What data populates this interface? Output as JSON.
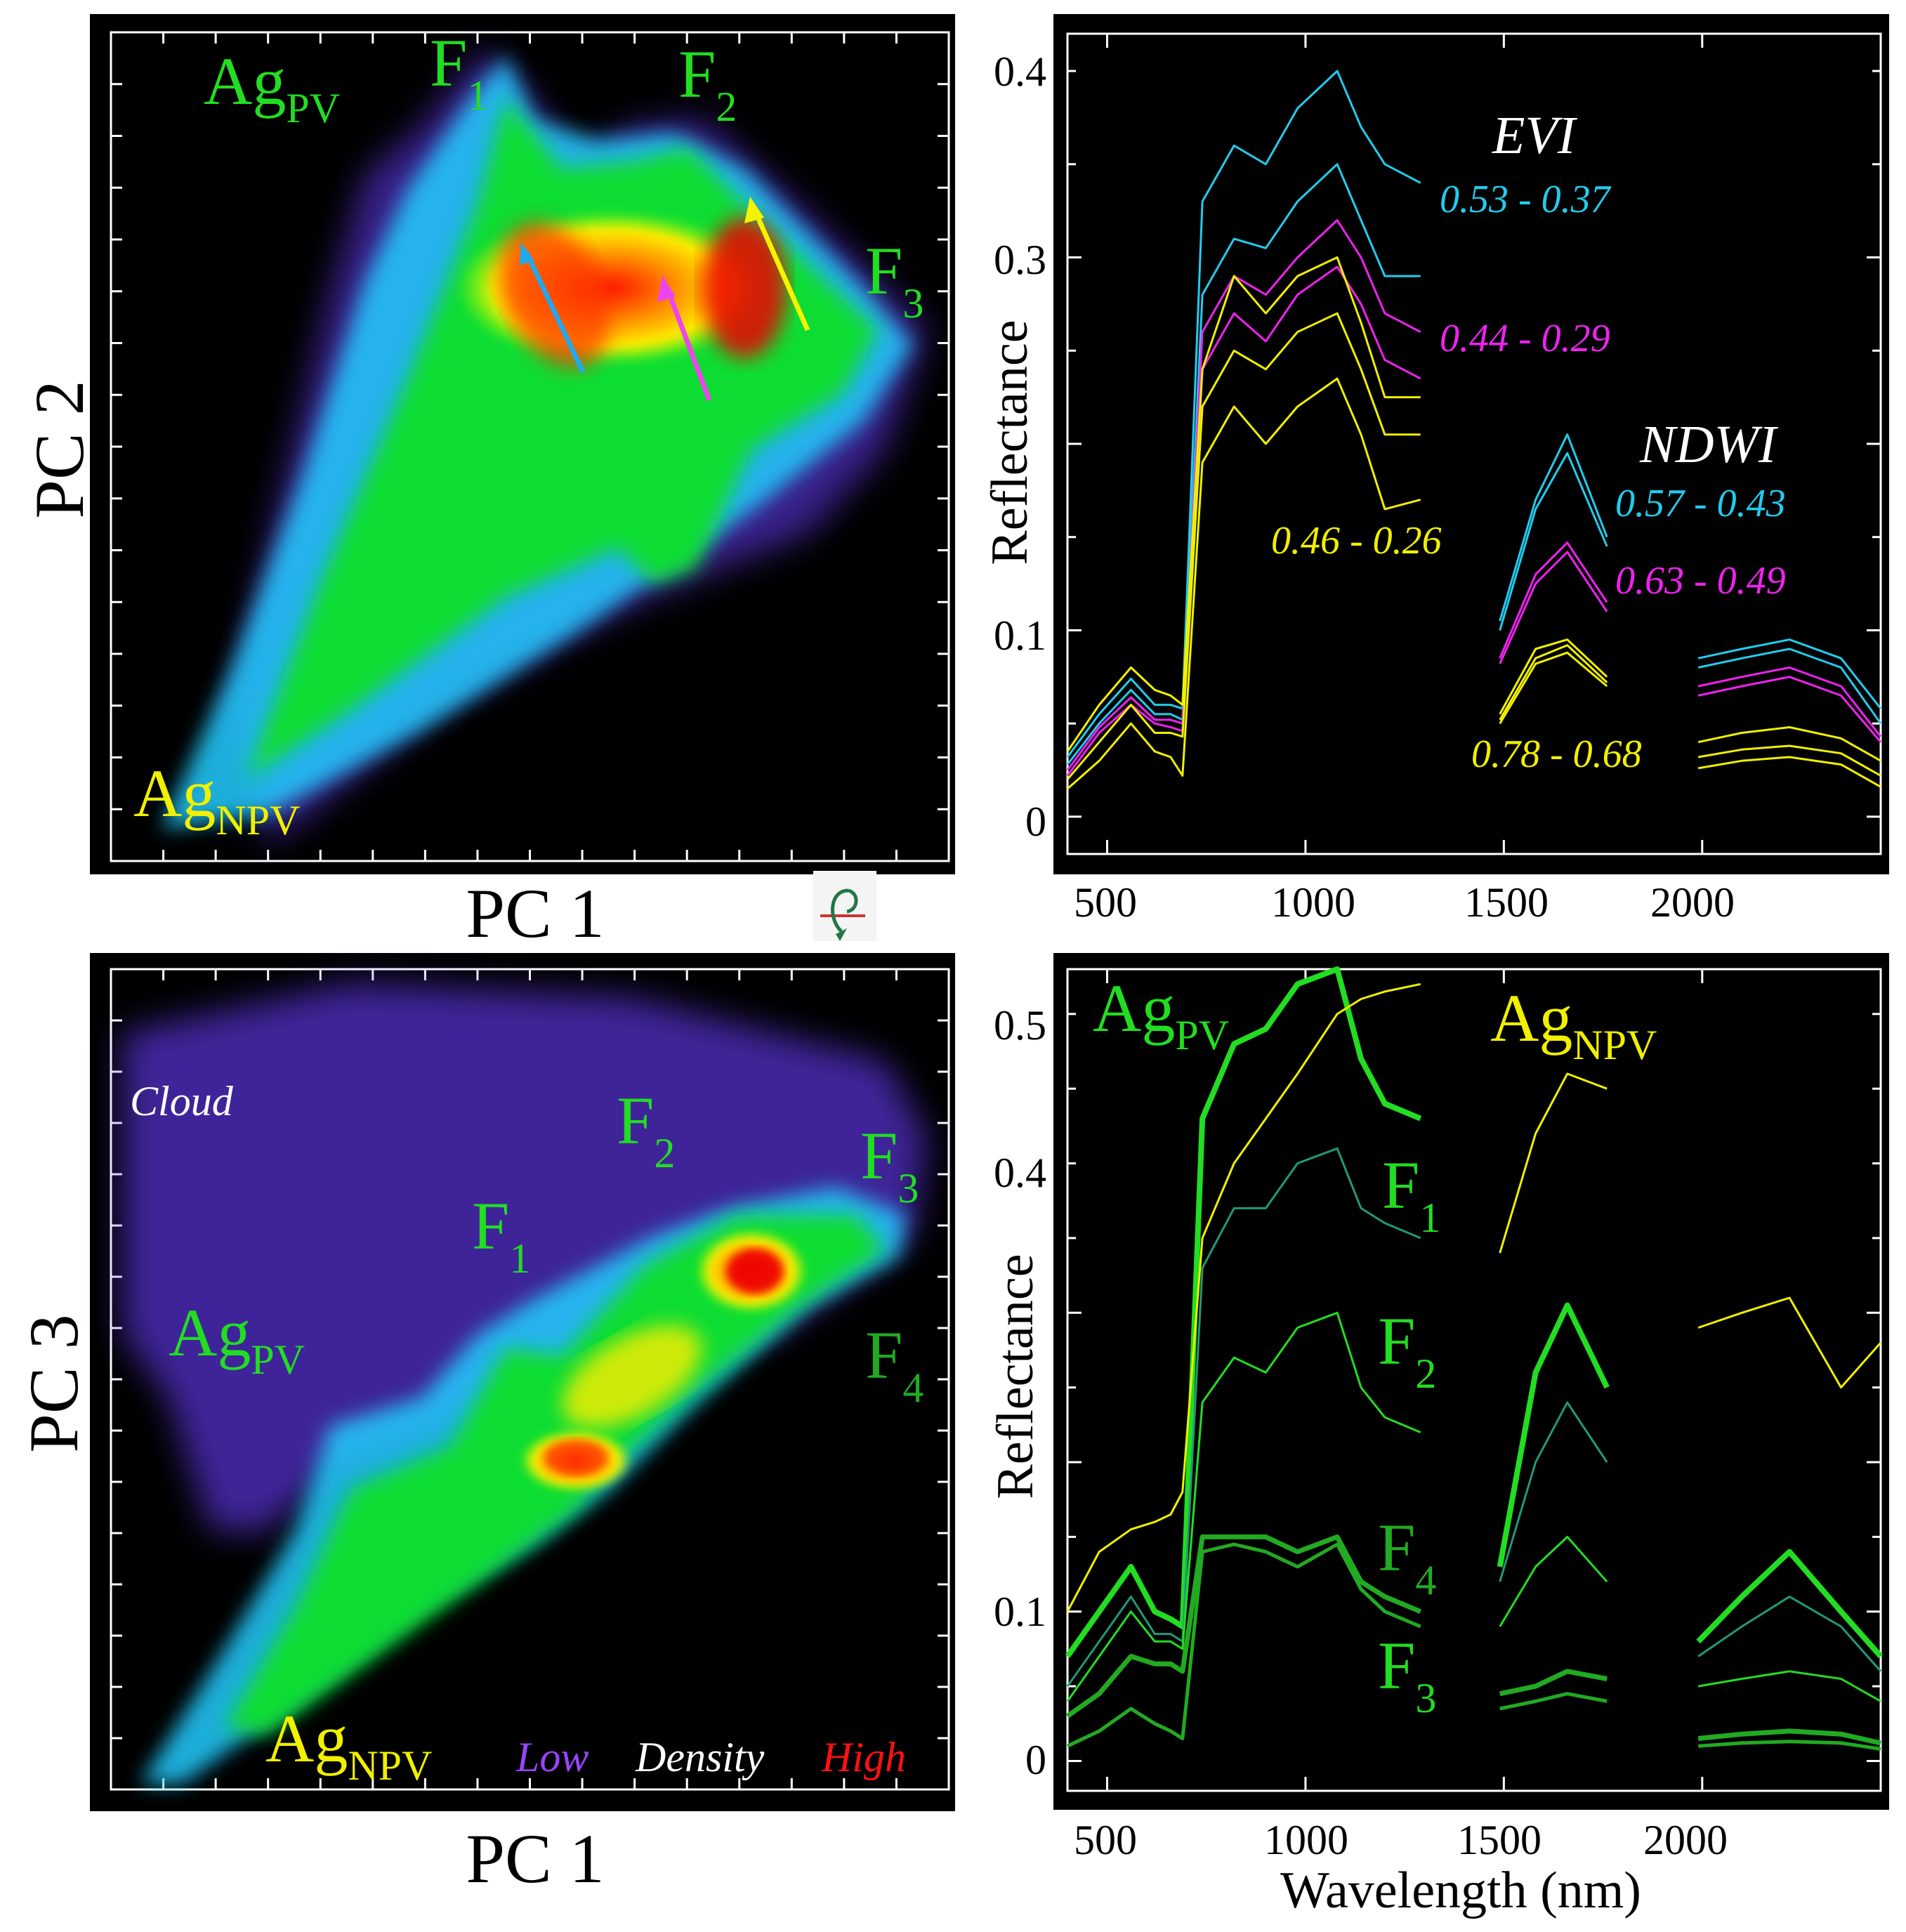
{
  "colors": {
    "green": "#22dd22",
    "yellow": "#f0f000",
    "cyan": "#22ccee",
    "magenta": "#ee22ee",
    "white": "#ffffff",
    "low": "#9944ff",
    "high": "#ff1111",
    "darkgreen": "#22aa22",
    "teal": "#229977"
  },
  "rotate_icon": "rotate-icon",
  "chart_data": [
    {
      "id": "scatter_pc1_pc2",
      "type": "heatmap",
      "title": "",
      "xlabel": "PC 1",
      "ylabel": "PC 2",
      "annotations": [
        {
          "name": "label-ag-pv",
          "base": "Ag",
          "sub": "PV",
          "color": "green"
        },
        {
          "name": "label-f1",
          "base": "F",
          "sub": "1",
          "color": "green"
        },
        {
          "name": "label-f2",
          "base": "F",
          "sub": "2",
          "color": "green"
        },
        {
          "name": "label-f3",
          "base": "F",
          "sub": "3",
          "color": "green"
        },
        {
          "name": "label-ag-npv",
          "base": "Ag",
          "sub": "NPV",
          "color": "yellow"
        }
      ],
      "arrows": [
        "cyan",
        "magenta",
        "yellow"
      ]
    },
    {
      "id": "spectra_indices",
      "type": "line",
      "title": "",
      "xlabel": "",
      "ylabel": "Reflectance",
      "xlim": [
        400,
        2450
      ],
      "ylim": [
        -0.02,
        0.42
      ],
      "xticks": [
        500,
        1000,
        1500,
        2000
      ],
      "yticks": [
        0,
        0.1,
        0.3,
        0.4
      ],
      "ytick_labels": [
        "0",
        "0.1",
        "0.3",
        "0.4"
      ],
      "index_labels": [
        {
          "text": "EVI",
          "color": "white"
        },
        {
          "text": "NDWI",
          "color": "white"
        }
      ],
      "range_labels": [
        {
          "text": "0.53 - 0.37",
          "color": "cyan"
        },
        {
          "text": "0.44 - 0.29",
          "color": "magenta"
        },
        {
          "text": "0.46 - 0.26",
          "color": "yellow"
        },
        {
          "text": "0.57 - 0.43",
          "color": "cyan"
        },
        {
          "text": "0.63 - 0.49",
          "color": "magenta"
        },
        {
          "text": "0.78 - 0.68",
          "color": "yellow"
        }
      ],
      "series": [
        {
          "name": "cyan-high",
          "color": "cyan",
          "vis": [
            0.032,
            0.055,
            0.074,
            0.06,
            0.06,
            0.058
          ],
          "nir": [
            0.33,
            0.36,
            0.35,
            0.38,
            0.4,
            0.37,
            0.35,
            0.34
          ],
          "swir1": [
            0.105,
            0.17,
            0.205,
            0.15
          ],
          "swir2": [
            0.085,
            0.09,
            0.095,
            0.085,
            0.058
          ]
        },
        {
          "name": "cyan-low",
          "color": "cyan",
          "vis": [
            0.028,
            0.05,
            0.068,
            0.055,
            0.055,
            0.052
          ],
          "nir": [
            0.28,
            0.31,
            0.305,
            0.33,
            0.35,
            0.32,
            0.29,
            0.29
          ],
          "swir1": [
            0.1,
            0.165,
            0.195,
            0.145
          ],
          "swir2": [
            0.08,
            0.085,
            0.09,
            0.08,
            0.05
          ]
        },
        {
          "name": "magenta-high",
          "color": "magenta",
          "vis": [
            0.025,
            0.048,
            0.064,
            0.052,
            0.052,
            0.05
          ],
          "nir": [
            0.26,
            0.29,
            0.28,
            0.3,
            0.32,
            0.3,
            0.27,
            0.26
          ],
          "swir1": [
            0.085,
            0.13,
            0.147,
            0.115
          ],
          "swir2": [
            0.07,
            0.075,
            0.08,
            0.07,
            0.043
          ]
        },
        {
          "name": "magenta-low",
          "color": "magenta",
          "vis": [
            0.022,
            0.045,
            0.06,
            0.05,
            0.048,
            0.046
          ],
          "nir": [
            0.24,
            0.27,
            0.255,
            0.28,
            0.295,
            0.275,
            0.245,
            0.235
          ],
          "swir1": [
            0.082,
            0.125,
            0.142,
            0.11
          ],
          "swir2": [
            0.065,
            0.07,
            0.075,
            0.065,
            0.04
          ]
        },
        {
          "name": "yellow-1",
          "color": "yellow",
          "vis": [
            0.035,
            0.06,
            0.08,
            0.068,
            0.065,
            0.06
          ],
          "nir": [
            0.24,
            0.29,
            0.27,
            0.29,
            0.3,
            0.265,
            0.225,
            0.225
          ],
          "swir1": [
            0.055,
            0.09,
            0.095,
            0.075
          ],
          "swir2": [
            0.04,
            0.045,
            0.048,
            0.042,
            0.03
          ]
        },
        {
          "name": "yellow-2",
          "color": "yellow",
          "vis": [
            0.02,
            0.04,
            0.06,
            0.045,
            0.045,
            0.043
          ],
          "nir": [
            0.22,
            0.25,
            0.24,
            0.26,
            0.27,
            0.24,
            0.205,
            0.205
          ],
          "swir1": [
            0.052,
            0.085,
            0.092,
            0.072
          ],
          "swir2": [
            0.032,
            0.036,
            0.038,
            0.034,
            0.022
          ]
        },
        {
          "name": "yellow-3",
          "color": "yellow",
          "vis": [
            0.015,
            0.03,
            0.05,
            0.035,
            0.032,
            0.022
          ],
          "nir": [
            0.19,
            0.22,
            0.2,
            0.22,
            0.235,
            0.205,
            0.165,
            0.17
          ],
          "swir1": [
            0.05,
            0.082,
            0.088,
            0.07
          ],
          "swir2": [
            0.026,
            0.03,
            0.032,
            0.028,
            0.016
          ]
        }
      ]
    },
    {
      "id": "scatter_pc1_pc3",
      "type": "heatmap",
      "title": "",
      "xlabel": "PC 1",
      "ylabel": "PC 3",
      "annotations": [
        {
          "name": "label-cloud",
          "text": "Cloud",
          "color": "white"
        },
        {
          "name": "label-f2",
          "base": "F",
          "sub": "2",
          "color": "green"
        },
        {
          "name": "label-f3",
          "base": "F",
          "sub": "3",
          "color": "green"
        },
        {
          "name": "label-f1",
          "base": "F",
          "sub": "1",
          "color": "green"
        },
        {
          "name": "label-ag-pv",
          "base": "Ag",
          "sub": "PV",
          "color": "green"
        },
        {
          "name": "label-f4",
          "base": "F",
          "sub": "4",
          "color": "darkgreen"
        },
        {
          "name": "label-ag-npv",
          "base": "Ag",
          "sub": "NPV",
          "color": "yellow"
        }
      ],
      "legend": {
        "low": "Low",
        "density": "Density",
        "high": "High"
      }
    },
    {
      "id": "spectra_classes",
      "type": "line",
      "title": "",
      "xlabel": "Wavelength (nm)",
      "ylabel": "Reflectance",
      "xlim": [
        400,
        2450
      ],
      "ylim": [
        -0.02,
        0.53
      ],
      "xticks": [
        500,
        1000,
        1500,
        2000
      ],
      "yticks": [
        0,
        0.1,
        0.4,
        0.5
      ],
      "ytick_labels": [
        "0",
        "0.1",
        "0.4",
        "0.5"
      ],
      "class_labels": [
        {
          "name": "label-ag-pv",
          "base": "Ag",
          "sub": "PV",
          "color": "green"
        },
        {
          "name": "label-ag-npv",
          "base": "Ag",
          "sub": "NPV",
          "color": "yellow"
        },
        {
          "name": "label-f1",
          "base": "F",
          "sub": "1",
          "color": "green"
        },
        {
          "name": "label-f2",
          "base": "F",
          "sub": "2",
          "color": "green"
        },
        {
          "name": "label-f4",
          "base": "F",
          "sub": "4",
          "color": "darkgreen"
        },
        {
          "name": "label-f3",
          "base": "F",
          "sub": "3",
          "color": "green"
        }
      ],
      "series": [
        {
          "name": "Ag PV",
          "color": "green",
          "width": 8,
          "vis": [
            0.07,
            0.1,
            0.13,
            0.1,
            0.095,
            0.09
          ],
          "nir": [
            0.43,
            0.48,
            0.49,
            0.52,
            0.53,
            0.47,
            0.44,
            0.43
          ],
          "swir1": [
            0.13,
            0.26,
            0.305,
            0.25
          ],
          "swir2": [
            0.08,
            0.11,
            0.14,
            0.1,
            0.07
          ]
        },
        {
          "name": "Ag NPV",
          "color": "yellow",
          "width": 3,
          "vis": [
            0.1,
            0.14,
            0.155,
            0.16,
            0.165,
            0.18
          ],
          "nir": [
            0.35,
            0.4,
            0.43,
            0.46,
            0.5,
            0.51,
            0.515,
            0.52
          ],
          "swir1": [
            0.34,
            0.42,
            0.46,
            0.45
          ],
          "swir2": [
            0.29,
            0.3,
            0.31,
            0.25,
            0.28
          ]
        },
        {
          "name": "F1",
          "color": "teal",
          "width": 3,
          "vis": [
            0.05,
            0.08,
            0.11,
            0.085,
            0.085,
            0.08
          ],
          "nir": [
            0.33,
            0.37,
            0.37,
            0.4,
            0.41,
            0.37,
            0.36,
            0.35
          ],
          "swir1": [
            0.12,
            0.2,
            0.24,
            0.2
          ],
          "swir2": [
            0.07,
            0.09,
            0.11,
            0.09,
            0.06
          ]
        },
        {
          "name": "F2",
          "color": "green",
          "width": 3,
          "vis": [
            0.04,
            0.07,
            0.1,
            0.08,
            0.08,
            0.075
          ],
          "nir": [
            0.24,
            0.27,
            0.26,
            0.29,
            0.3,
            0.25,
            0.23,
            0.22
          ],
          "swir1": [
            0.09,
            0.13,
            0.15,
            0.12
          ],
          "swir2": [
            0.05,
            0.055,
            0.06,
            0.055,
            0.04
          ]
        },
        {
          "name": "F4",
          "color": "darkgreen",
          "width": 7,
          "vis": [
            0.03,
            0.045,
            0.07,
            0.065,
            0.065,
            0.06
          ],
          "nir": [
            0.15,
            0.15,
            0.15,
            0.14,
            0.15,
            0.12,
            0.11,
            0.1
          ],
          "swir1": [
            0.045,
            0.05,
            0.06,
            0.055
          ],
          "swir2": [
            0.015,
            0.018,
            0.02,
            0.018,
            0.012
          ]
        },
        {
          "name": "F3",
          "color": "darkgreen",
          "width": 5,
          "vis": [
            0.01,
            0.02,
            0.035,
            0.025,
            0.02,
            0.015
          ],
          "nir": [
            0.14,
            0.145,
            0.14,
            0.13,
            0.145,
            0.115,
            0.1,
            0.09
          ],
          "swir1": [
            0.035,
            0.04,
            0.045,
            0.04
          ],
          "swir2": [
            0.01,
            0.012,
            0.013,
            0.012,
            0.008
          ]
        }
      ]
    }
  ]
}
